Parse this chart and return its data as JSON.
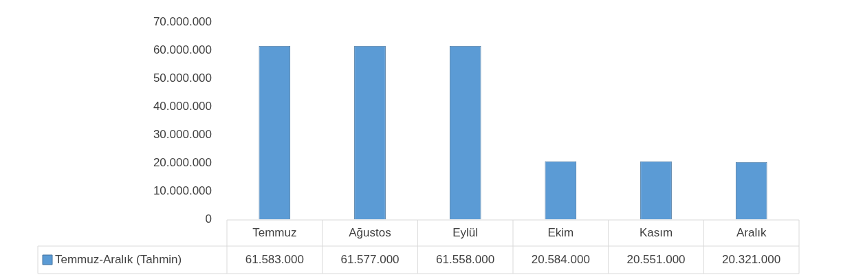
{
  "chart_data": {
    "type": "bar",
    "categories": [
      "Temmuz",
      "Ağustos",
      "Eylül",
      "Ekim",
      "Kasım",
      "Aralık"
    ],
    "series": [
      {
        "name": "Temmuz-Aralık (Tahmin)",
        "color": "#5b9bd5",
        "values": [
          61583000,
          61577000,
          61558000,
          20584000,
          20551000,
          20321000
        ],
        "value_labels": [
          "61.583.000",
          "61.577.000",
          "61.558.000",
          "20.584.000",
          "20.551.000",
          "20.321.000"
        ]
      }
    ],
    "ylim": [
      0,
      70000000
    ],
    "yticks": [
      0,
      {
        "value": 10000000,
        "label": "10.000.000"
      },
      {
        "value": 20000000,
        "label": "20.000.000"
      },
      {
        "value": 30000000,
        "label": "30.000.000"
      },
      {
        "value": 40000000,
        "label": "40.000.000"
      },
      {
        "value": 50000000,
        "label": "50.000.000"
      },
      {
        "value": 60000000,
        "label": "60.000.000"
      },
      {
        "value": 70000000,
        "label": "70.000.000"
      }
    ],
    "grid": false,
    "legend": "bottom"
  }
}
